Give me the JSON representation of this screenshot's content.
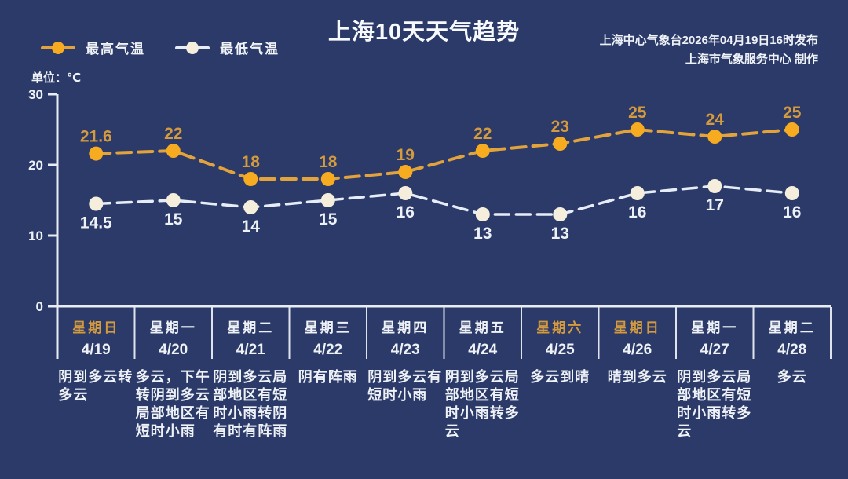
{
  "header": {
    "title": "上海10天天气趋势",
    "source_line1": "上海中心气象台2026年04月19日16时发布",
    "source_line2": "上海市气象服务中心  制作",
    "unit_label": "单位：℃"
  },
  "legend": [
    {
      "label": "最高气温",
      "line_color": "#e2a33c",
      "dot_color": "#f6ab20"
    },
    {
      "label": "最低气温",
      "line_color": "#e7edf7",
      "dot_color": "#f6eedc"
    }
  ],
  "colors": {
    "background": "#2b3a68",
    "axis": "#e8ecf3",
    "divider": "#dfe4ec",
    "text_white": "#eef2f7",
    "accent_amber": "#d49a3e"
  },
  "chart_data": {
    "type": "line",
    "title": "上海10天天气趋势",
    "ylabel": "℃",
    "ylim": [
      0,
      30
    ],
    "yticks": [
      0,
      10,
      20,
      30
    ],
    "grid": false,
    "legend_position": "top-left",
    "line_style": "dashed",
    "categories": [
      "4/19",
      "4/20",
      "4/21",
      "4/22",
      "4/23",
      "4/24",
      "4/25",
      "4/26",
      "4/27",
      "4/28"
    ],
    "series": [
      {
        "name": "最高气温",
        "values": [
          21.6,
          22,
          18,
          18,
          19,
          22,
          23,
          25,
          24,
          25
        ],
        "dot_color": "#f6ab20",
        "line_color": "#e2a33c",
        "label_color": "#d49a3e"
      },
      {
        "name": "最低气温",
        "values": [
          14.5,
          15,
          14,
          15,
          16,
          13,
          13,
          16,
          17,
          16
        ],
        "dot_color": "#f6eedc",
        "line_color": "#e7edf7",
        "label_color": "#eef2f7"
      }
    ],
    "days": [
      {
        "weekday": "星期日",
        "date": "4/19",
        "weather": "阴到多云转多云",
        "is_weekend": true
      },
      {
        "weekday": "星期一",
        "date": "4/20",
        "weather": "多云，下午转阴到多云局部地区有短时小雨",
        "is_weekend": false
      },
      {
        "weekday": "星期二",
        "date": "4/21",
        "weather": "阴到多云局部地区有短时小雨转阴有时有阵雨",
        "is_weekend": false
      },
      {
        "weekday": "星期三",
        "date": "4/22",
        "weather": "阴有阵雨",
        "is_weekend": false
      },
      {
        "weekday": "星期四",
        "date": "4/23",
        "weather": "阴到多云有短时小雨",
        "is_weekend": false
      },
      {
        "weekday": "星期五",
        "date": "4/24",
        "weather": "阴到多云局部地区有短时小雨转多云",
        "is_weekend": false
      },
      {
        "weekday": "星期六",
        "date": "4/25",
        "weather": "多云到晴",
        "is_weekend": true
      },
      {
        "weekday": "星期日",
        "date": "4/26",
        "weather": "晴到多云",
        "is_weekend": true
      },
      {
        "weekday": "星期一",
        "date": "4/27",
        "weather": "阴到多云局部地区有短时小雨转多云",
        "is_weekend": false
      },
      {
        "weekday": "星期二",
        "date": "4/28",
        "weather": "多云",
        "is_weekend": false
      }
    ]
  }
}
